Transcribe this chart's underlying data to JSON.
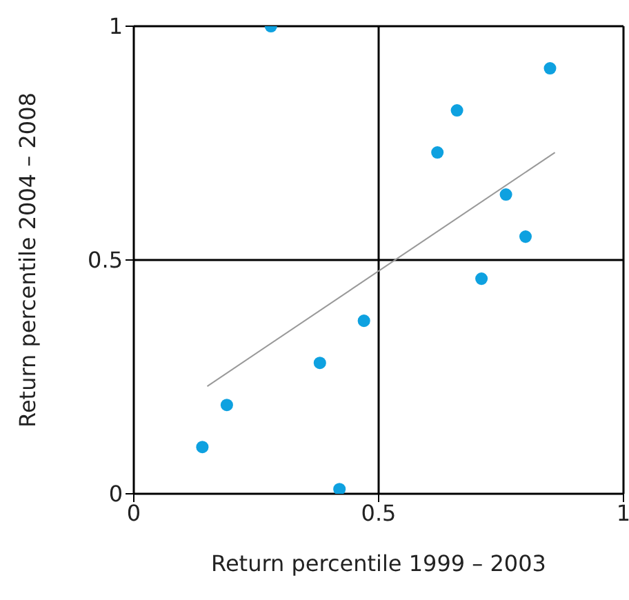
{
  "chart_data": {
    "type": "scatter",
    "xlabel": "Return percentile 1999 – 2003",
    "ylabel": "Return percentile 2004 – 2008",
    "xlim": [
      0,
      1
    ],
    "ylim": [
      0,
      1
    ],
    "xticks": [
      0,
      0.5,
      1
    ],
    "yticks": [
      0,
      0.5,
      1
    ],
    "grid": true,
    "marker": "circle",
    "series": [
      {
        "color": "#0ea1e0",
        "x": [
          0.28,
          0.85,
          0.66,
          0.62,
          0.76,
          0.8,
          0.71,
          0.47,
          0.38,
          0.19,
          0.14,
          0.42
        ],
        "values": [
          1,
          0.91,
          0.82,
          0.73,
          0.64,
          0.55,
          0.46,
          0.37,
          0.28,
          0.19,
          0.1,
          0.01
        ]
      },
      {
        "type": "line",
        "marker": "none",
        "color": "#999999",
        "x": [
          0.15,
          0.86
        ],
        "values": [
          0.23,
          0.73
        ]
      }
    ]
  }
}
